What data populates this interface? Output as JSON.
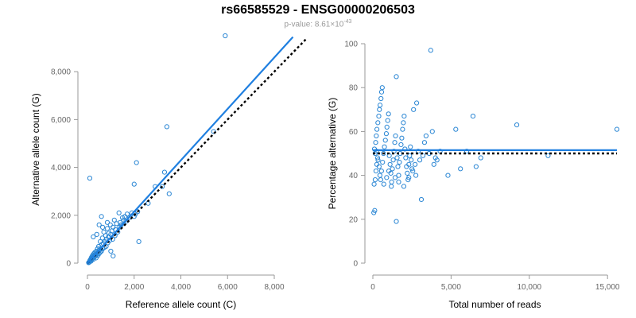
{
  "page": {
    "title": "rs66585529 - ENSG00000206503",
    "pvalue_prefix": "p-value: 8.61×10",
    "pvalue_exponent": "-43"
  },
  "colors": {
    "points": "#2a86d4",
    "fit_line": "#1f7fe0",
    "reference_line": "#000000",
    "tick_text": "#666666",
    "axis": "#999999"
  },
  "chart_data": [
    {
      "type": "scatter",
      "title": "",
      "xlabel": "Reference allele count (C)",
      "ylabel": "Alternative allele count (G)",
      "xlim": [
        0,
        8000
      ],
      "ylim": [
        0,
        9500
      ],
      "x_ticks": [
        0,
        2000,
        4000,
        6000,
        8000
      ],
      "x_tick_labels": [
        "0",
        "2,000",
        "4,000",
        "6,000",
        "8,000"
      ],
      "y_ticks": [
        0,
        2000,
        4000,
        6000,
        8000
      ],
      "y_tick_labels": [
        "0",
        "2,000",
        "4,000",
        "6,000",
        "8,000"
      ],
      "grid": false,
      "points": [
        [
          50,
          20
        ],
        [
          70,
          40
        ],
        [
          90,
          60
        ],
        [
          100,
          90
        ],
        [
          110,
          120
        ],
        [
          130,
          150
        ],
        [
          150,
          80
        ],
        [
          160,
          200
        ],
        [
          170,
          130
        ],
        [
          180,
          250
        ],
        [
          200,
          180
        ],
        [
          210,
          300
        ],
        [
          220,
          220
        ],
        [
          240,
          350
        ],
        [
          250,
          160
        ],
        [
          260,
          280
        ],
        [
          280,
          400
        ],
        [
          300,
          250
        ],
        [
          310,
          330
        ],
        [
          320,
          450
        ],
        [
          340,
          300
        ],
        [
          350,
          380
        ],
        [
          370,
          220
        ],
        [
          380,
          500
        ],
        [
          400,
          350
        ],
        [
          420,
          420
        ],
        [
          430,
          600
        ],
        [
          450,
          320
        ],
        [
          470,
          480
        ],
        [
          480,
          700
        ],
        [
          500,
          400
        ],
        [
          520,
          560
        ],
        [
          540,
          450
        ],
        [
          550,
          900
        ],
        [
          570,
          620
        ],
        [
          600,
          500
        ],
        [
          620,
          780
        ],
        [
          640,
          1050
        ],
        [
          650,
          600
        ],
        [
          680,
          820
        ],
        [
          700,
          1300
        ],
        [
          720,
          650
        ],
        [
          750,
          900
        ],
        [
          780,
          1150
        ],
        [
          800,
          700
        ],
        [
          820,
          1000
        ],
        [
          850,
          1450
        ],
        [
          870,
          850
        ],
        [
          900,
          1100
        ],
        [
          920,
          1250
        ],
        [
          950,
          950
        ],
        [
          980,
          1600
        ],
        [
          1000,
          1200
        ],
        [
          1050,
          1350
        ],
        [
          1080,
          1000
        ],
        [
          1100,
          1500
        ],
        [
          1150,
          1800
        ],
        [
          1180,
          1150
        ],
        [
          1200,
          1400
        ],
        [
          1250,
          1650
        ],
        [
          1300,
          1300
        ],
        [
          1350,
          2100
        ],
        [
          1380,
          1500
        ],
        [
          1400,
          1700
        ],
        [
          1450,
          1600
        ],
        [
          1500,
          1900
        ],
        [
          1550,
          1800
        ],
        [
          1600,
          1950
        ],
        [
          1650,
          1750
        ],
        [
          1700,
          2050
        ],
        [
          1800,
          1900
        ],
        [
          1900,
          2100
        ],
        [
          2000,
          1950
        ],
        [
          2050,
          2050
        ],
        [
          2150,
          2150
        ],
        [
          2200,
          900
        ],
        [
          2100,
          4200
        ],
        [
          2000,
          3300
        ],
        [
          2600,
          2500
        ],
        [
          2900,
          3200
        ],
        [
          3200,
          3200
        ],
        [
          3300,
          3800
        ],
        [
          3500,
          2900
        ],
        [
          3400,
          5700
        ],
        [
          5400,
          5500
        ],
        [
          5900,
          9500
        ],
        [
          100,
          3550
        ],
        [
          600,
          1950
        ],
        [
          500,
          1600
        ],
        [
          850,
          1700
        ],
        [
          1000,
          500
        ],
        [
          1100,
          300
        ],
        [
          250,
          1100
        ],
        [
          400,
          1200
        ],
        [
          650,
          1500
        ]
      ],
      "fit_line": {
        "from": [
          0,
          0
        ],
        "to": [
          8800,
          9450
        ]
      },
      "reference_line": {
        "from": [
          0,
          0
        ],
        "to": [
          9400,
          9400
        ]
      }
    },
    {
      "type": "scatter",
      "title": "",
      "xlabel": "Total number of reads",
      "ylabel": "Percentage alternative (G)",
      "xlim": [
        0,
        15600
      ],
      "ylim": [
        0,
        100
      ],
      "x_ticks": [
        0,
        5000,
        10000,
        15000
      ],
      "x_tick_labels": [
        "0",
        "5,000",
        "10,000",
        "15,000"
      ],
      "y_ticks": [
        0,
        20,
        40,
        60,
        80,
        100
      ],
      "y_tick_labels": [
        "0",
        "20",
        "40",
        "60",
        "80",
        "100"
      ],
      "grid": false,
      "points": [
        [
          60,
          23
        ],
        [
          120,
          24
        ],
        [
          80,
          36
        ],
        [
          150,
          38
        ],
        [
          200,
          42
        ],
        [
          250,
          45
        ],
        [
          300,
          48
        ],
        [
          100,
          52
        ],
        [
          180,
          55
        ],
        [
          220,
          58
        ],
        [
          260,
          61
        ],
        [
          320,
          64
        ],
        [
          380,
          67
        ],
        [
          420,
          70
        ],
        [
          460,
          72
        ],
        [
          520,
          75
        ],
        [
          560,
          78
        ],
        [
          600,
          80
        ],
        [
          150,
          50
        ],
        [
          240,
          51
        ],
        [
          330,
          47
        ],
        [
          400,
          44
        ],
        [
          450,
          40
        ],
        [
          500,
          38
        ],
        [
          550,
          42
        ],
        [
          620,
          46
        ],
        [
          680,
          50
        ],
        [
          740,
          53
        ],
        [
          800,
          56
        ],
        [
          860,
          59
        ],
        [
          900,
          62
        ],
        [
          950,
          65
        ],
        [
          1000,
          68
        ],
        [
          1050,
          49
        ],
        [
          1100,
          45
        ],
        [
          1150,
          41
        ],
        [
          1200,
          37
        ],
        [
          1250,
          43
        ],
        [
          1300,
          47
        ],
        [
          1350,
          51
        ],
        [
          1400,
          55
        ],
        [
          1450,
          58
        ],
        [
          1500,
          19
        ],
        [
          1550,
          48
        ],
        [
          1600,
          44
        ],
        [
          1650,
          40
        ],
        [
          1700,
          46
        ],
        [
          1750,
          50
        ],
        [
          1800,
          54
        ],
        [
          1850,
          57
        ],
        [
          1900,
          61
        ],
        [
          1950,
          64
        ],
        [
          2000,
          67
        ],
        [
          2050,
          52
        ],
        [
          2100,
          48
        ],
        [
          2150,
          44
        ],
        [
          2200,
          41
        ],
        [
          2250,
          38
        ],
        [
          2300,
          45
        ],
        [
          2350,
          49
        ],
        [
          2400,
          53
        ],
        [
          2450,
          47
        ],
        [
          2500,
          43
        ],
        [
          2600,
          70
        ],
        [
          2700,
          45
        ],
        [
          2800,
          73
        ],
        [
          2900,
          51
        ],
        [
          3000,
          47
        ],
        [
          3100,
          29
        ],
        [
          3200,
          49
        ],
        [
          3300,
          55
        ],
        [
          3400,
          58
        ],
        [
          3600,
          50
        ],
        [
          3700,
          97
        ],
        [
          3800,
          60
        ],
        [
          3900,
          45
        ],
        [
          4000,
          48
        ],
        [
          4100,
          47
        ],
        [
          4300,
          51
        ],
        [
          4800,
          40
        ],
        [
          5300,
          61
        ],
        [
          5600,
          43
        ],
        [
          6000,
          51
        ],
        [
          6400,
          67
        ],
        [
          6600,
          44
        ],
        [
          6900,
          48
        ],
        [
          9200,
          63
        ],
        [
          11200,
          49
        ],
        [
          15600,
          61
        ],
        [
          1500,
          85
        ],
        [
          700,
          36
        ],
        [
          880,
          39
        ],
        [
          1020,
          42
        ],
        [
          1180,
          35
        ],
        [
          1420,
          39
        ],
        [
          1650,
          37
        ],
        [
          1980,
          35
        ],
        [
          2300,
          39
        ],
        [
          2550,
          42
        ],
        [
          2750,
          40
        ]
      ],
      "fit_line": {
        "from": [
          0,
          51.5
        ],
        "to": [
          15600,
          51.5
        ]
      },
      "reference_line": {
        "from": [
          0,
          50
        ],
        "to": [
          15600,
          50
        ]
      }
    }
  ]
}
